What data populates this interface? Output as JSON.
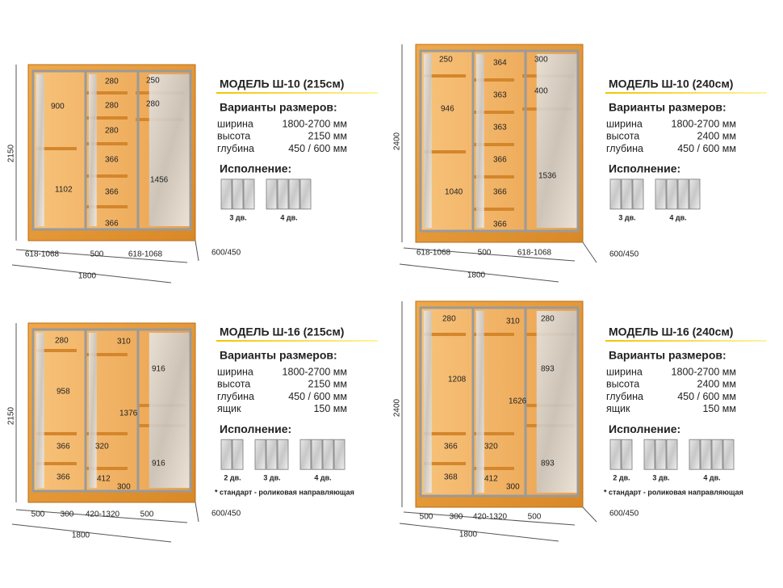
{
  "panels": [
    {
      "title": "МОДЕЛЬ Ш-10 (215см)",
      "sizes_heading": "Варианты размеров:",
      "specs": [
        {
          "label": "ширина",
          "value": "1800-2700 мм"
        },
        {
          "label": "высота",
          "value": "2150 мм"
        },
        {
          "label": "глубина",
          "value": "450 / 600 мм"
        }
      ],
      "execution_heading": "Исполнение:",
      "options": [
        "3 дв.",
        "4 дв."
      ],
      "height": "2150",
      "depth": "600/450",
      "width": "1800",
      "section_widths": [
        "618-1068",
        "500",
        "618-1068"
      ],
      "inner_dims": [
        "900",
        "1102",
        "280",
        "280",
        "280",
        "366",
        "366",
        "366",
        "250",
        "280",
        "1456"
      ]
    },
    {
      "title": "МОДЕЛЬ Ш-10 (240см)",
      "sizes_heading": "Варианты размеров:",
      "specs": [
        {
          "label": "ширина",
          "value": "1800-2700 мм"
        },
        {
          "label": "высота",
          "value": "2400 мм"
        },
        {
          "label": "глубина",
          "value": "450 / 600 мм"
        }
      ],
      "execution_heading": "Исполнение:",
      "options": [
        "3 дв.",
        "4 дв."
      ],
      "height": "2400",
      "depth": "600/450",
      "width": "1800",
      "section_widths": [
        "618-1068",
        "500",
        "618-1068"
      ],
      "inner_dims": [
        "250",
        "946",
        "1040",
        "364",
        "363",
        "363",
        "366",
        "366",
        "366",
        "300",
        "400",
        "1536"
      ]
    },
    {
      "title": "МОДЕЛЬ Ш-16 (215см)",
      "sizes_heading": "Варианты размеров:",
      "specs": [
        {
          "label": "ширина",
          "value": "1800-2700 мм"
        },
        {
          "label": "высота",
          "value": "2150 мм"
        },
        {
          "label": "глубина",
          "value": "450 / 600 мм"
        },
        {
          "label": "ящик",
          "value": "150 мм"
        }
      ],
      "execution_heading": "Исполнение:",
      "options": [
        "2 дв.",
        "3 дв.",
        "4 дв."
      ],
      "note": "* стандарт - роликовая направляющая",
      "height": "2150",
      "depth": "600/450",
      "width": "1800",
      "section_widths": [
        "500",
        "300",
        "420-1320",
        "500"
      ],
      "inner_dims": [
        "280",
        "958",
        "366",
        "366",
        "310",
        "1376",
        "320",
        "412",
        "300",
        "916",
        "916"
      ]
    },
    {
      "title": "МОДЕЛЬ Ш-16 (240см)",
      "sizes_heading": "Варианты размеров:",
      "specs": [
        {
          "label": "ширина",
          "value": "1800-2700 мм"
        },
        {
          "label": "высота",
          "value": "2400 мм"
        },
        {
          "label": "глубина",
          "value": "450 / 600 мм"
        },
        {
          "label": "ящик",
          "value": "150 мм"
        }
      ],
      "execution_heading": "Исполнение:",
      "options": [
        "2 дв.",
        "3 дв.",
        "4 дв."
      ],
      "note": "* стандарт - роликовая направляющая",
      "height": "2400",
      "depth": "600/450",
      "width": "1800",
      "section_widths": [
        "500",
        "300",
        "420-1320",
        "500"
      ],
      "inner_dims": [
        "280",
        "1208",
        "366",
        "368",
        "310",
        "1626",
        "320",
        "412",
        "300",
        "280",
        "893",
        "893"
      ]
    }
  ]
}
